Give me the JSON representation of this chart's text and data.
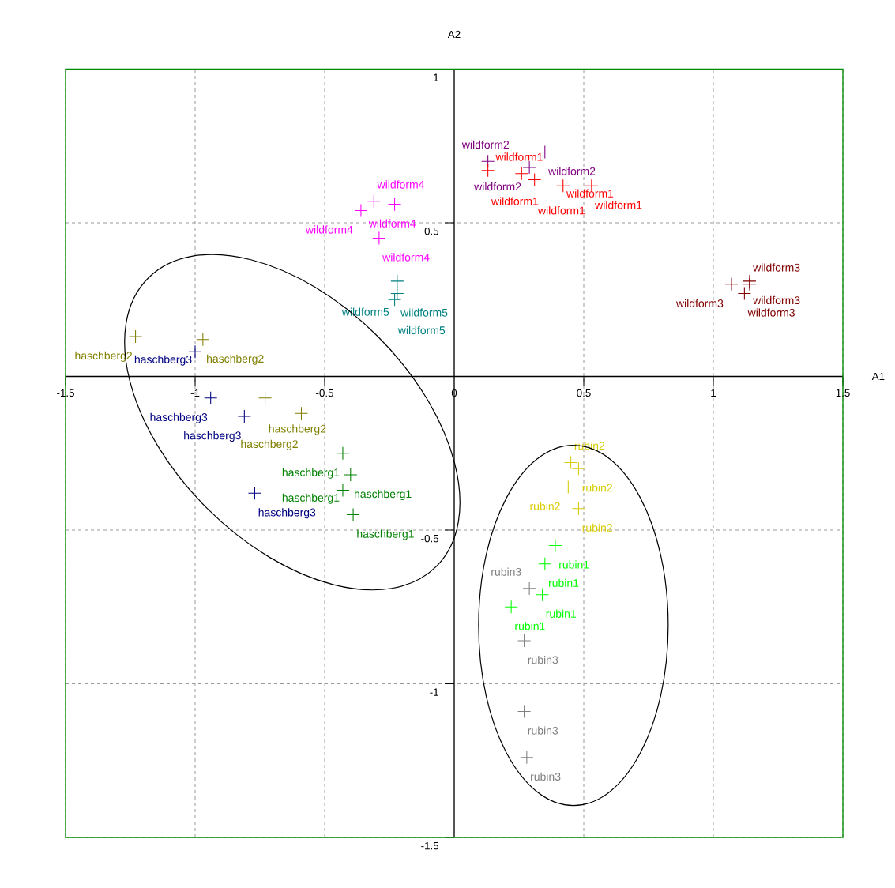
{
  "chart_data": {
    "type": "scatter",
    "xlabel": "A1",
    "ylabel": "A2",
    "xlim": [
      -1.5,
      1.5
    ],
    "ylim": [
      -1.5,
      1
    ],
    "xticks": [
      -1.5,
      -1,
      -0.5,
      0,
      0.5,
      1,
      1.5
    ],
    "yticks": [
      -1.5,
      -1,
      -0.5,
      0.5,
      1
    ],
    "grid": true,
    "marker": "cross",
    "series": [
      {
        "color": "#800080",
        "x": [
          0.13,
          0.35,
          0.29
        ],
        "values": [
          0.7,
          0.73,
          0.68
        ],
        "value_labels": [
          "wildform2",
          "wildform2",
          "wildform2"
        ]
      },
      {
        "color": "#ff0000",
        "x": [
          0.13,
          0.26,
          0.31,
          0.42,
          0.53
        ],
        "values": [
          0.67,
          0.66,
          0.64,
          0.62,
          0.62
        ],
        "value_labels": [
          "wildform1",
          "wildform1",
          "wildform1",
          "wildform1",
          "wildform1"
        ]
      },
      {
        "color": "#ff00ff",
        "x": [
          -0.36,
          -0.31,
          -0.23,
          -0.29
        ],
        "values": [
          0.54,
          0.57,
          0.56,
          0.45
        ],
        "value_labels": [
          "wildform4",
          "wildform4",
          "wildform4",
          "wildform4"
        ]
      },
      {
        "color": "#008080",
        "x": [
          -0.22,
          -0.22,
          -0.23
        ],
        "values": [
          0.31,
          0.27,
          0.25
        ],
        "value_labels": [
          "wildform5",
          "wildform5",
          "wildform5"
        ]
      },
      {
        "color": "#800000",
        "x": [
          1.07,
          1.14,
          1.14,
          1.12
        ],
        "values": [
          0.3,
          0.31,
          0.3,
          0.27
        ],
        "value_labels": [
          "wildform3",
          "wildform3",
          "wildform3",
          "wildform3"
        ]
      },
      {
        "color": "#808000",
        "x": [
          -1.23,
          -0.97,
          -0.73,
          -0.59
        ],
        "values": [
          0.13,
          0.12,
          -0.07,
          -0.12
        ],
        "value_labels": [
          "haschberg2",
          "haschberg2",
          "haschberg2",
          "haschberg2"
        ]
      },
      {
        "color": "#000080",
        "x": [
          -1.0,
          -0.94,
          -0.81,
          -0.77
        ],
        "values": [
          0.08,
          -0.07,
          -0.13,
          -0.38
        ],
        "value_labels": [
          "haschberg3",
          "haschberg3",
          "haschberg3",
          "haschberg3"
        ]
      },
      {
        "color": "#008000",
        "x": [
          -0.43,
          -0.4,
          -0.43,
          -0.39
        ],
        "values": [
          -0.25,
          -0.32,
          -0.37,
          -0.45
        ],
        "value_labels": [
          "haschberg1",
          "haschberg1",
          "haschberg1",
          "haschberg1"
        ]
      },
      {
        "color": "#d8cc00",
        "x": [
          0.45,
          0.48,
          0.44,
          0.48
        ],
        "values": [
          -0.28,
          -0.3,
          -0.36,
          -0.43
        ],
        "value_labels": [
          "rubin2",
          "rubin2",
          "rubin2",
          "rubin2"
        ]
      },
      {
        "color": "#00ff00",
        "x": [
          0.39,
          0.35,
          0.34,
          0.22
        ],
        "values": [
          -0.55,
          -0.61,
          -0.71,
          -0.75
        ],
        "value_labels": [
          "rubin1",
          "rubin1",
          "rubin1",
          "rubin1"
        ]
      },
      {
        "color": "#808080",
        "x": [
          0.29,
          0.27,
          0.27,
          0.28
        ],
        "values": [
          -0.69,
          -0.86,
          -1.09,
          -1.24
        ],
        "value_labels": [
          "rubin3",
          "rubin3",
          "rubin3",
          "rubin3"
        ]
      }
    ]
  }
}
